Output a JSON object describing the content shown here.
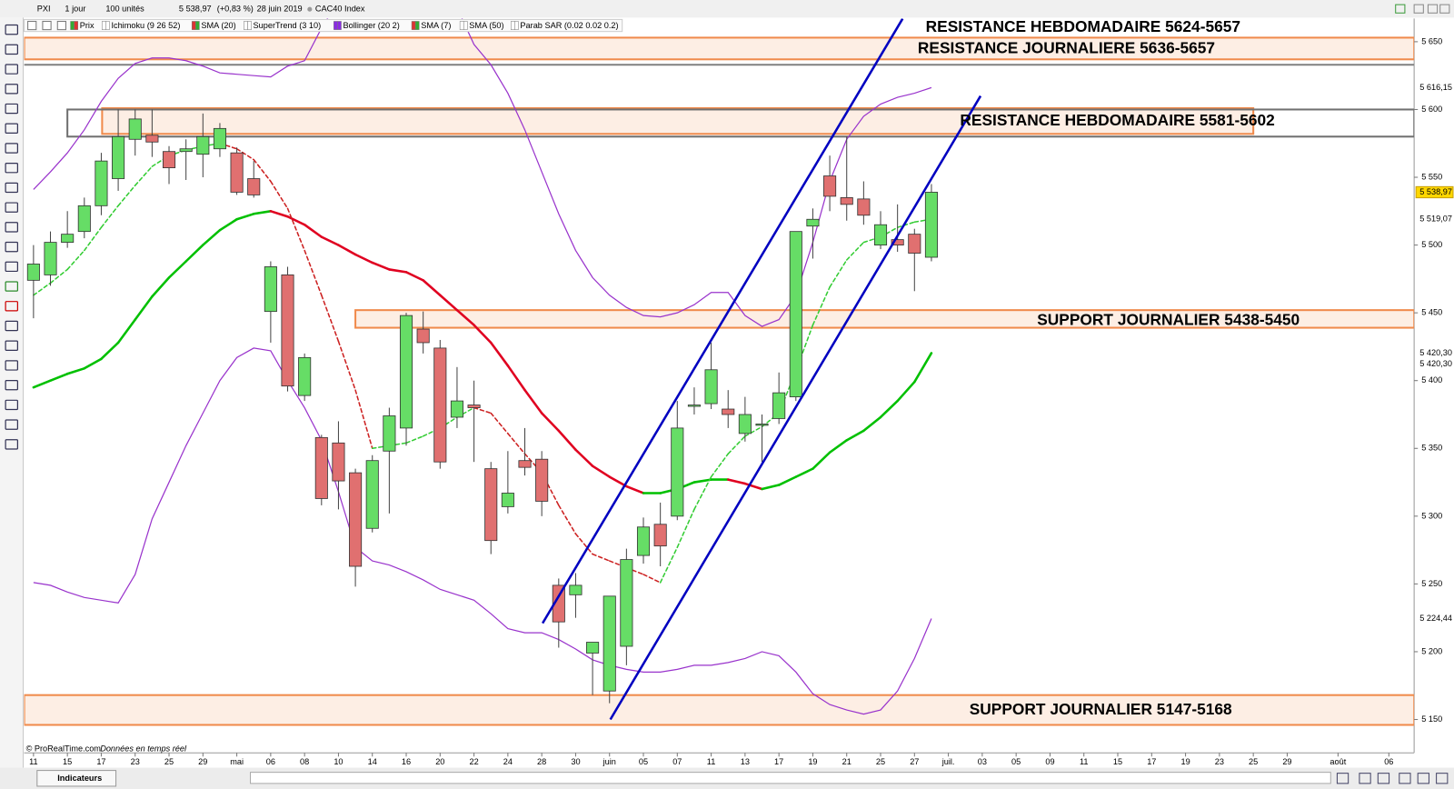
{
  "toolbar": {
    "symbol": "PXI",
    "period": "1 jour",
    "units": "100 unités",
    "price": "5 538,97",
    "change": "(+0,83 %)",
    "date": "28 juin 2019",
    "name": "CAC40 Index"
  },
  "indicator_bar": [
    "Prix",
    "Ichimoku (9 26 52)",
    "SMA (20)",
    "SuperTrend (3 10)",
    "Bollinger (20 2)",
    "SMA (7)",
    "SMA (50)",
    "Parab SAR (0.02 0.02 0.2)"
  ],
  "footer": {
    "copyright": "© ProRealTime.com",
    "realtime": "Données en temps réel",
    "indicators": "Indicateurs"
  },
  "chart_data": {
    "type": "candlestick",
    "up_color": "#66dd66",
    "down_color": "#e07070",
    "ylim": [
      5133.6,
      5667.1
    ],
    "yticks": [
      {
        "value": 5150,
        "label": "5 150"
      },
      {
        "value": 5200,
        "label": "5 200"
      },
      {
        "value": 5250,
        "label": "5 250"
      },
      {
        "value": 5300,
        "label": "5 300"
      },
      {
        "value": 5350,
        "label": "5 350"
      },
      {
        "value": 5400,
        "label": "5 400"
      },
      {
        "value": 5450,
        "label": "5 450"
      },
      {
        "value": 5500,
        "label": "5 500"
      },
      {
        "value": 5550,
        "label": "5 550"
      },
      {
        "value": 5600,
        "label": "5 600"
      },
      {
        "value": 5650,
        "label": "5 650"
      }
    ],
    "categories": [
      "11",
      null,
      "15",
      null,
      "17",
      null,
      "23",
      null,
      "25",
      null,
      "29",
      null,
      "mai",
      null,
      "06",
      null,
      "08",
      null,
      "10",
      null,
      "14",
      null,
      "16",
      null,
      "20",
      null,
      "22",
      null,
      "24",
      null,
      "28",
      null,
      "30",
      null,
      "juin",
      null,
      "05",
      null,
      "07",
      null,
      "11",
      null,
      "13",
      null,
      "17",
      null,
      "19",
      null,
      "21",
      null,
      "25",
      null,
      "27",
      null,
      "juil.",
      null,
      "03",
      null,
      "05",
      null,
      "09",
      null,
      "11",
      null,
      "15",
      null,
      "17",
      null,
      "19",
      null,
      "23",
      null,
      "25",
      null,
      "29",
      null,
      null,
      "août",
      null,
      null,
      "06"
    ],
    "open": [
      5474,
      5478,
      5502,
      5510,
      5529,
      5549,
      5578,
      5581,
      5569,
      5569,
      5567,
      5571,
      5568,
      5549,
      5451,
      5478,
      5389,
      5358,
      5354,
      5332,
      5291,
      5348,
      5365,
      5438,
      5424,
      5373,
      5382,
      5335,
      5307,
      5341,
      5342,
      5249,
      5242,
      5199,
      5171,
      5204,
      5271,
      5294,
      5300,
      5381,
      5383,
      5379,
      5361,
      5367,
      5372,
      5388,
      5514,
      5551,
      5535,
      5534,
      5500,
      5504,
      5508,
      5491,
      null,
      null,
      null,
      null,
      null,
      null,
      null,
      null,
      null,
      null,
      null,
      null,
      null,
      null,
      null,
      null,
      null,
      null,
      null,
      null,
      null,
      null,
      null,
      null,
      null,
      null,
      null
    ],
    "high": [
      5500,
      5510,
      5525,
      5535,
      5568,
      5600,
      5600,
      5600,
      5573,
      5578,
      5597,
      5590,
      5572,
      5562,
      5488,
      5484,
      5420,
      5360,
      5370,
      5335,
      5345,
      5380,
      5450,
      5451,
      5430,
      5410,
      5400,
      5340,
      5348,
      5365,
      5348,
      5254,
      5258,
      5207,
      5241,
      5276,
      5299,
      5310,
      5385,
      5395,
      5428,
      5393,
      5388,
      5375,
      5406,
      5510,
      5527,
      5566,
      5580,
      5547,
      5525,
      5530,
      5512,
      5545,
      null,
      null,
      null,
      null,
      null,
      null,
      null,
      null,
      null,
      null,
      null,
      null,
      null,
      null,
      null,
      null,
      null,
      null,
      null,
      null,
      null,
      null,
      null,
      null,
      null,
      null,
      null
    ],
    "low": [
      5446,
      5470,
      5498,
      5505,
      5522,
      5540,
      5566,
      5565,
      5545,
      5548,
      5550,
      5565,
      5537,
      5535,
      5428,
      5392,
      5385,
      5308,
      5305,
      5248,
      5288,
      5302,
      5352,
      5420,
      5335,
      5365,
      5340,
      5272,
      5302,
      5330,
      5300,
      5203,
      5225,
      5168,
      5162,
      5190,
      5265,
      5263,
      5297,
      5375,
      5379,
      5365,
      5355,
      5340,
      5368,
      5385,
      5490,
      5525,
      5518,
      5515,
      5497,
      5495,
      5466,
      5488,
      null,
      null,
      null,
      null,
      null,
      null,
      null,
      null,
      null,
      null,
      null,
      null,
      null,
      null,
      null,
      null,
      null,
      null,
      null,
      null,
      null,
      null,
      null,
      null,
      null,
      null,
      null
    ],
    "close": [
      5486,
      5502,
      5508,
      5529,
      5562,
      5580,
      5593,
      5576,
      5557,
      5571,
      5580,
      5586,
      5539,
      5537,
      5484,
      5396,
      5417,
      5313,
      5326,
      5263,
      5341,
      5374,
      5448,
      5428,
      5340,
      5385,
      5380,
      5282,
      5317,
      5336,
      5311,
      5222,
      5249,
      5207,
      5241,
      5268,
      5292,
      5278,
      5365,
      5382,
      5408,
      5375,
      5375,
      5368,
      5391,
      5510,
      5519,
      5536,
      5530,
      5522,
      5515,
      5500,
      5494,
      5538.97,
      null,
      null,
      null,
      null,
      null,
      null,
      null,
      null,
      null,
      null,
      null,
      null,
      null,
      null,
      null,
      null,
      null,
      null,
      null,
      null,
      null,
      null,
      null,
      null,
      null,
      null,
      null
    ],
    "overlays": [
      {
        "style": "solid",
        "up_color": "#00c000",
        "down_color": "#e00020",
        "values": [
          5395,
          5400,
          5405,
          5409,
          5416,
          5428,
          5445,
          5462,
          5476,
          5488,
          5500,
          5511,
          5519,
          5523,
          5525,
          5521,
          5515,
          5506,
          5500,
          5493,
          5487,
          5482,
          5480,
          5474,
          5463,
          5452,
          5441,
          5428,
          5411,
          5393,
          5376,
          5363,
          5349,
          5337,
          5329,
          5322,
          5317,
          5317,
          5320,
          5325,
          5327,
          5327,
          5324,
          5320,
          5323,
          5329,
          5335,
          5347,
          5356,
          5363,
          5373,
          5385,
          5399,
          5420.3,
          null,
          null,
          null,
          null,
          null,
          null,
          null,
          null,
          null,
          null,
          null,
          null,
          null,
          null,
          null,
          null,
          null,
          null,
          null,
          null,
          null,
          null,
          null,
          null,
          null,
          null,
          null
        ]
      },
      {
        "style": "dashed",
        "up_color": "#33cc33",
        "down_color": "#cc2020",
        "values": [
          5463,
          5472,
          5482,
          5496,
          5513,
          5529,
          5544,
          5558,
          5566,
          5570,
          5573,
          5575,
          5571,
          5563,
          5547,
          5527,
          5496,
          5463,
          5429,
          5393,
          5350,
          5352,
          5354,
          5359,
          5365,
          5373,
          5380,
          5376,
          5361,
          5346,
          5332,
          5308,
          5287,
          5272,
          5267,
          5262,
          5257,
          5251,
          5277,
          5305,
          5329,
          5346,
          5359,
          5366,
          5376,
          5407,
          5441,
          5469,
          5489,
          5502,
          5506,
          5513,
          5517,
          5519.07,
          null,
          null,
          null,
          null,
          null,
          null,
          null,
          null,
          null,
          null,
          null,
          null,
          null,
          null,
          null,
          null,
          null,
          null,
          null,
          null,
          null,
          null,
          null,
          null,
          null,
          null,
          null
        ]
      },
      {
        "style": "solid",
        "color": "#9933cc",
        "values": [
          5541,
          5554,
          5568,
          5585,
          5606,
          5623,
          5634,
          5638,
          5638,
          5636,
          5632,
          5627,
          5626,
          5625,
          5624,
          5632,
          5636,
          5660,
          5680,
          5700,
          5710,
          5715,
          5710,
          5700,
          5690,
          5675,
          5648,
          5633,
          5612,
          5585,
          5554,
          5523,
          5496,
          5476,
          5463,
          5454,
          5448,
          5447,
          5450,
          5456,
          5465,
          5465,
          5448,
          5440,
          5445,
          5463,
          5502,
          5547,
          5578,
          5595,
          5604,
          5609,
          5612,
          5616.15,
          null,
          null,
          null,
          null,
          null,
          null,
          null,
          null,
          null,
          null,
          null,
          null,
          null,
          null,
          null,
          null,
          null,
          null,
          null,
          null,
          null,
          null,
          null,
          null,
          null,
          null,
          null
        ]
      },
      {
        "style": "solid",
        "color": "#9933cc",
        "values": [
          5251,
          5249,
          5244,
          5240,
          5238,
          5236,
          5257,
          5298,
          5325,
          5352,
          5376,
          5400,
          5417,
          5424,
          5422,
          5400,
          5380,
          5356,
          5318,
          5277,
          5267,
          5264,
          5259,
          5253,
          5246,
          5242,
          5238,
          5228,
          5217,
          5214,
          5214,
          5209,
          5202,
          5194,
          5190,
          5187,
          5185,
          5185,
          5187,
          5190,
          5190,
          5192,
          5195,
          5200,
          5197,
          5185,
          5169,
          5161,
          5157,
          5154,
          5157,
          5171,
          5195,
          5224.44,
          null,
          null,
          null,
          null,
          null,
          null,
          null,
          null,
          null,
          null,
          null,
          null,
          null,
          null,
          null,
          null,
          null,
          null,
          null,
          null,
          null,
          null,
          null,
          null,
          null,
          null,
          null
        ]
      }
    ],
    "zones": [
      {
        "low": 5637,
        "high": 5653,
        "x": [
          -0.55,
          81.5
        ],
        "fill": "#fdeee4",
        "stroke": "#f08a4b",
        "label": "RESISTANCE JOURNALIERE 5636-5657",
        "label_color": "#f79646"
      },
      {
        "low": 5633,
        "high": 5633,
        "x": [
          -0.55,
          81.5
        ],
        "stroke": "#808080",
        "label": "RESISTANCE HEBDOMADAIRE 5624-5657",
        "label_color": "#000000"
      },
      {
        "low": 5582,
        "high": 5601,
        "x": [
          4.05,
          72
        ],
        "fill": "#fdeee4",
        "stroke": "#f08a4b"
      },
      {
        "low": 5580,
        "high": 5600,
        "x": [
          2,
          81.5
        ],
        "stroke": "#707070",
        "label": "RESISTANCE HEBDOMADAIRE 5581-5602",
        "label_color": "#000000"
      },
      {
        "low": 5439,
        "high": 5452,
        "x": [
          19,
          81.5
        ],
        "fill": "#fdeee4",
        "stroke": "#f08a4b",
        "label": "SUPPORT JOURNALIER 5438-5450",
        "label_color": "#f79646"
      },
      {
        "low": 5146,
        "high": 5168,
        "x": [
          -0.55,
          81.5
        ],
        "fill": "#fdeee4",
        "stroke": "#f08a4b",
        "label": "SUPPORT JOURNALIER 5147-5168",
        "label_color": "#f79646"
      }
    ],
    "channels": [
      {
        "x": [
          30.05,
          51.3
        ],
        "y": [
          5221,
          5667
        ],
        "color": "#0000c0"
      },
      {
        "x": [
          34.05,
          55.9
        ],
        "y": [
          5150,
          5610
        ],
        "color": "#0000c0"
      }
    ],
    "price_labels": [
      {
        "value": 5616.15,
        "label": "5 616,15",
        "color": "#8030c0"
      },
      {
        "value": 5538.97,
        "label": "5 538,97",
        "color": "#000000",
        "background": "#ffd700"
      },
      {
        "value": 5519.07,
        "label": "5 519,07",
        "color": "#00b000"
      },
      {
        "value": 5420.3,
        "label": "5 420,30",
        "color": "#00b000"
      },
      {
        "value": 5420.3,
        "label": "5 420,30",
        "color": "#8030c0"
      },
      {
        "value": 5224.44,
        "label": "5 224,44",
        "color": "#8030c0"
      }
    ]
  }
}
